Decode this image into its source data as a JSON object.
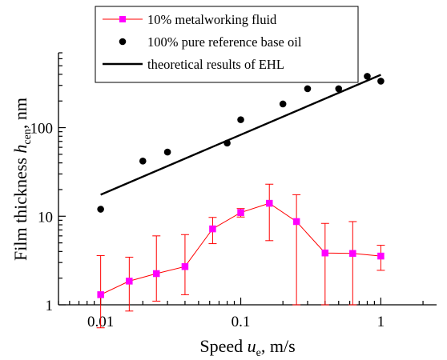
{
  "chart_data": {
    "type": "scatter",
    "x_scale": "log",
    "y_scale": "log",
    "xlim": [
      0.005,
      2.5
    ],
    "ylim": [
      1,
      700
    ],
    "x_ticks": [
      {
        "value": 0.01,
        "label": "0.01"
      },
      {
        "value": 0.1,
        "label": "0.1"
      },
      {
        "value": 1,
        "label": "1"
      }
    ],
    "y_ticks": [
      {
        "value": 1,
        "label": "1"
      },
      {
        "value": 10,
        "label": "10"
      },
      {
        "value": 100,
        "label": "100"
      }
    ],
    "xlabel": {
      "main": "Speed ",
      "var": "u",
      "sub": "e",
      "unit": ", m/s"
    },
    "ylabel": {
      "main": "Film thickness  ",
      "var": "h",
      "sub": "cen",
      "unit": ", nm"
    },
    "legend_position": "top-left",
    "series": [
      {
        "name": "10% metalworking fluid",
        "kind": "line-markers-errorbars",
        "color": "#ff00ff",
        "line_color": "#ff0000",
        "x": [
          0.01,
          0.016,
          0.025,
          0.04,
          0.063,
          0.1,
          0.16,
          0.25,
          0.4,
          0.63,
          1.0
        ],
        "y": [
          1.3,
          1.85,
          2.25,
          2.7,
          7.2,
          11.0,
          14.0,
          8.7,
          3.85,
          3.8,
          3.55
        ],
        "err_low": [
          0.55,
          0.85,
          1.1,
          1.3,
          4.9,
          9.8,
          5.3,
          1.0,
          1.0,
          1.0,
          2.45
        ],
        "err_high": [
          3.6,
          3.45,
          6.0,
          6.2,
          9.7,
          12.2,
          23.0,
          17.5,
          8.3,
          8.7,
          4.7
        ]
      },
      {
        "name": "100% pure reference base oil",
        "kind": "scatter",
        "color": "#000000",
        "x": [
          0.01,
          0.02,
          0.03,
          0.08,
          0.1,
          0.2,
          0.3,
          0.5,
          0.8,
          1.0
        ],
        "y": [
          12.0,
          42.0,
          53.0,
          67.0,
          123.0,
          185.0,
          275.0,
          275.0,
          380.0,
          335.0
        ]
      },
      {
        "name": "theoretical results of EHL",
        "kind": "line",
        "color": "#000000",
        "x": [
          0.01,
          1.0
        ],
        "y": [
          17.5,
          395.0
        ]
      }
    ]
  }
}
